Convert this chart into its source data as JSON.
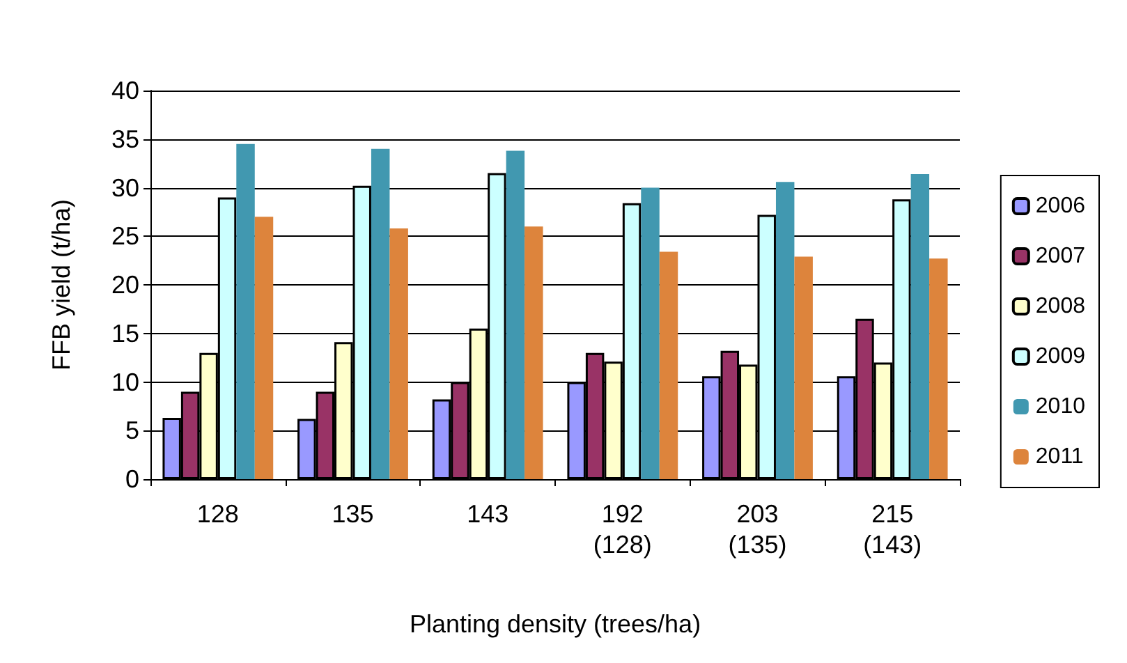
{
  "chart_data": {
    "type": "bar",
    "xlabel": "Planting density (trees/ha)",
    "ylabel": "FFB yield (t/ha)",
    "categories": [
      "128",
      "135",
      "143",
      "192\n(128)",
      "203\n(135)",
      "215\n(143)"
    ],
    "series": [
      {
        "name": "2006",
        "color": "#9999ff",
        "values": [
          6.3,
          6.2,
          8.2,
          10,
          10.6,
          10.6
        ]
      },
      {
        "name": "2007",
        "color": "#993366",
        "values": [
          9,
          9,
          10,
          13,
          13.2,
          16.5
        ]
      },
      {
        "name": "2008",
        "color": "#ffffcc",
        "values": [
          13,
          14.1,
          15.5,
          12.1,
          11.8,
          12
        ]
      },
      {
        "name": "2009",
        "color": "#ccffff",
        "values": [
          29,
          30.2,
          31.5,
          28.4,
          27.2,
          28.8
        ]
      },
      {
        "name": "2010",
        "color": "#4198b0",
        "values": [
          34.5,
          34,
          33.8,
          30,
          30.6,
          31.4
        ]
      },
      {
        "name": "2011",
        "color": "#dd843c",
        "values": [
          27,
          25.8,
          26,
          23.4,
          22.9,
          22.7
        ]
      }
    ],
    "ylim": [
      0,
      40
    ],
    "yticks": [
      0,
      5,
      10,
      15,
      20,
      25,
      30,
      35,
      40
    ],
    "grid": "y",
    "legend": "right"
  }
}
